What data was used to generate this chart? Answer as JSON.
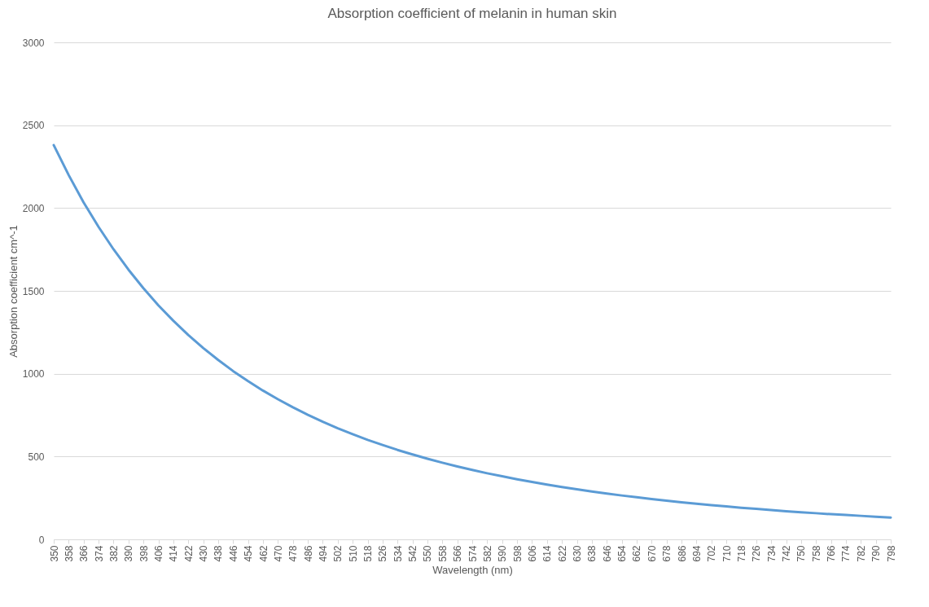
{
  "chart_data": {
    "type": "line",
    "title": "Absorption coefficient of melanin in human skin",
    "xlabel": "Wavelength (nm)",
    "ylabel": "Absorption coefficient cm^-1",
    "categories": [
      "350",
      "358",
      "366",
      "374",
      "382",
      "390",
      "398",
      "406",
      "414",
      "422",
      "430",
      "438",
      "446",
      "454",
      "462",
      "470",
      "478",
      "486",
      "494",
      "502",
      "510",
      "518",
      "526",
      "534",
      "542",
      "550",
      "558",
      "566",
      "574",
      "582",
      "590",
      "598",
      "606",
      "614",
      "622",
      "630",
      "638",
      "646",
      "654",
      "662",
      "670",
      "678",
      "686",
      "694",
      "702",
      "710",
      "718",
      "726",
      "734",
      "742",
      "750",
      "758",
      "766",
      "774",
      "782",
      "790",
      "798"
    ],
    "series": [
      {
        "color": "#5b9bd5",
        "values": [
          2380,
          2199,
          2034,
          1886,
          1751,
          1628,
          1516,
          1413,
          1320,
          1234,
          1155,
          1083,
          1016,
          955,
          898,
          846,
          797,
          752,
          710,
          671,
          635,
          601,
          570,
          540,
          513,
          487,
          463,
          440,
          419,
          399,
          381,
          363,
          347,
          331,
          316,
          302,
          289,
          277,
          265,
          254,
          243,
          234,
          224,
          215,
          207,
          199,
          191,
          184,
          177,
          170,
          164,
          158,
          152,
          147,
          142,
          137,
          132
        ]
      }
    ],
    "ylim": [
      0,
      3000
    ],
    "yticks": [
      0,
      500,
      1000,
      1500,
      2000,
      2500,
      3000
    ],
    "grid": "y",
    "legend": false,
    "line_style": "solid"
  }
}
